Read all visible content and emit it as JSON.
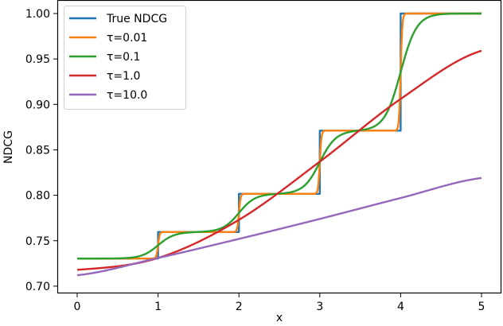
{
  "chart_data": {
    "type": "line",
    "title": "",
    "xlabel": "x",
    "ylabel": "NDCG",
    "xlim": [
      -0.25,
      5.25
    ],
    "ylim": [
      0.697,
      1.015
    ],
    "xticks": [
      "0",
      "1",
      "2",
      "3",
      "4",
      "5"
    ],
    "yticks": [
      "0.70",
      "0.75",
      "0.80",
      "0.85",
      "0.90",
      "0.95",
      "1.00"
    ],
    "grid": false,
    "legend_position": "upper left",
    "step_levels": [
      0.7304,
      0.7596,
      0.8016,
      0.8711,
      1.0
    ],
    "series": [
      {
        "name": "True NDCG",
        "color": "#1f77b4",
        "kind": "step",
        "x": [
          0,
          1,
          2,
          3,
          4,
          5
        ],
        "values": [
          0.7304,
          0.7596,
          0.8016,
          0.8711,
          1.0,
          1.0
        ]
      },
      {
        "name": "τ=0.01",
        "color": "#ff7f0e",
        "kind": "smooth-step",
        "tau": 0.01,
        "x": [
          0,
          1,
          2,
          3,
          4,
          5
        ],
        "values": [
          0.7304,
          0.745,
          0.781,
          0.836,
          0.936,
          1.0
        ]
      },
      {
        "name": "τ=0.1",
        "color": "#2ca02c",
        "kind": "smooth-step",
        "tau": 0.1,
        "x": [
          0,
          1,
          2,
          3,
          4,
          5
        ],
        "values": [
          0.7304,
          0.745,
          0.781,
          0.836,
          0.936,
          1.0
        ]
      },
      {
        "name": "τ=1.0",
        "color": "#d62728",
        "kind": "smooth",
        "tau": 1.0,
        "x": [
          0,
          1,
          2,
          3,
          4,
          5
        ],
        "values": [
          0.718,
          0.731,
          0.773,
          0.837,
          0.906,
          0.959
        ]
      },
      {
        "name": "τ=10.0",
        "color": "#9467bd",
        "kind": "smooth",
        "tau": 10.0,
        "x": [
          0,
          1,
          2,
          3,
          4,
          5
        ],
        "values": [
          0.712,
          0.731,
          0.752,
          0.774,
          0.797,
          0.819
        ]
      }
    ]
  }
}
